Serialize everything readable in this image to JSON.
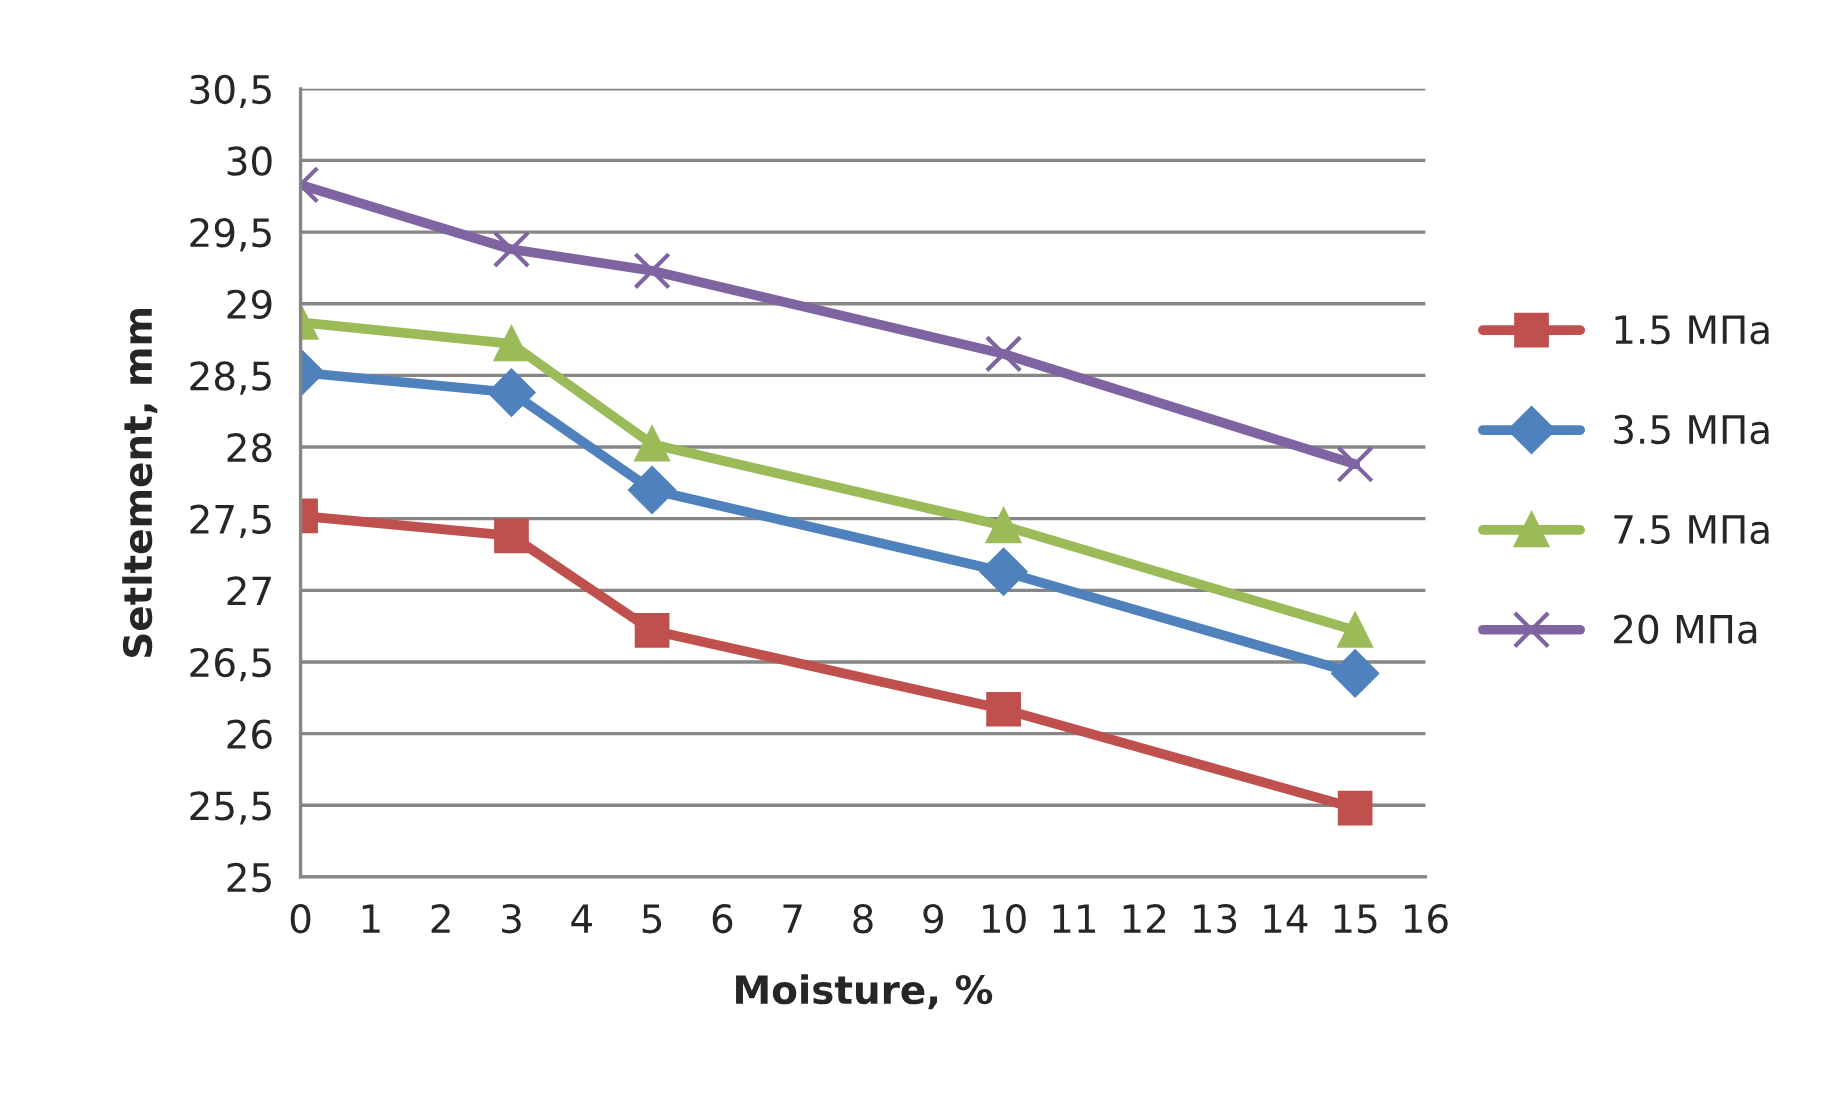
{
  "chart_data": {
    "type": "line",
    "xlabel": "Moisture, %",
    "ylabel": "Setltement, mm",
    "x": [
      0,
      3,
      5,
      10,
      15
    ],
    "series": [
      {
        "name": "1.5 МПа",
        "color": "#c0504d",
        "marker": "square",
        "values": [
          27.52,
          27.38,
          26.72,
          26.17,
          25.48
        ]
      },
      {
        "name": "3.5 МПа",
        "color": "#4f81bd",
        "marker": "diamond",
        "values": [
          28.52,
          28.38,
          27.7,
          27.13,
          26.42
        ]
      },
      {
        "name": "7.5 МПа",
        "color": "#9bbb59",
        "marker": "triangle",
        "values": [
          28.87,
          28.72,
          28.02,
          27.45,
          26.72
        ]
      },
      {
        "name": "20 МПа",
        "color": "#8064a2",
        "marker": "cross",
        "values": [
          29.83,
          29.38,
          29.23,
          28.65,
          27.88
        ]
      }
    ],
    "xlim": [
      0,
      16
    ],
    "xticks": [
      0,
      1,
      2,
      3,
      4,
      5,
      6,
      7,
      8,
      9,
      10,
      11,
      12,
      13,
      14,
      15,
      16
    ],
    "ylim": [
      25,
      30.5
    ],
    "yticks": [
      25,
      {
        "value": 25.5,
        "label": "25,5"
      },
      26,
      {
        "value": 26.5,
        "label": "26,5"
      },
      27,
      {
        "value": 27.5,
        "label": "27,5"
      },
      28,
      {
        "value": 28.5,
        "label": "28,5"
      },
      29,
      {
        "value": 29.5,
        "label": "29,5"
      },
      30,
      {
        "value": 30.5,
        "label": "30,5"
      }
    ],
    "grid": "y",
    "legend": "right",
    "line_style": "solid"
  }
}
